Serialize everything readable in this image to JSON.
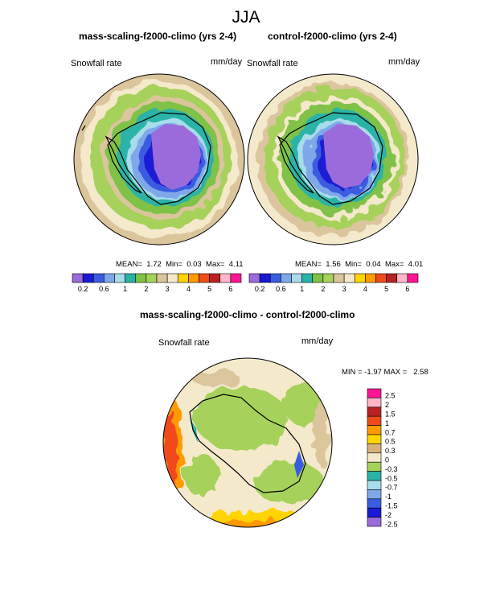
{
  "page_title": "JJA",
  "panels": [
    {
      "title": "mass-scaling-f2000-climo (yrs 2-4)",
      "variable": "Snowfall rate",
      "units": "mm/day",
      "stats": {
        "mean_label": "MEAN=",
        "mean": "1.72",
        "min_label": "Min=",
        "min": "0.03",
        "max_label": "Max=",
        "max": "4.11"
      }
    },
    {
      "title": "control-f2000-climo (yrs 2-4)",
      "variable": "Snowfall rate",
      "units": "mm/day",
      "stats": {
        "mean_label": "MEAN=",
        "mean": "1.56",
        "min_label": "Min=",
        "min": "0.04",
        "max_label": "Max=",
        "max": "4.01"
      }
    }
  ],
  "diff_panel": {
    "title": "mass-scaling-f2000-climo - control-f2000-climo",
    "variable": "Snowfall rate",
    "units": "mm/day",
    "stats": {
      "min_label": "MIN =",
      "min": "-1.97",
      "max_label": "MAX =",
      "max": "2.58"
    }
  },
  "colorbar_abs": {
    "colors": [
      "#9b6bdb",
      "#1a1ad4",
      "#3a5ce0",
      "#7ea8ea",
      "#a8dcea",
      "#29b3a6",
      "#7fc246",
      "#a6d15a",
      "#dbc59d",
      "#f5e9cc",
      "#ffd400",
      "#ff9a00",
      "#f04a1a",
      "#b82222",
      "#ffb6c8",
      "#ff1493"
    ],
    "tick_labels": [
      "0.2",
      "0.6",
      "1",
      "2",
      "3",
      "4",
      "5",
      "6"
    ]
  },
  "colorbar_diff": {
    "colors": [
      "#ff1493",
      "#ffb6c8",
      "#b82222",
      "#f04a1a",
      "#ff9a00",
      "#ffd400",
      "#d8b27a",
      "#f5e9cc",
      "#a6d15a",
      "#29b3a6",
      "#a8dcea",
      "#7ea8ea",
      "#3a5ce0",
      "#1a1ad4",
      "#9b6bdb"
    ],
    "tick_labels": [
      "2.5",
      "2",
      "1.5",
      "1",
      "0.7",
      "0.5",
      "0.3",
      "0",
      "-0.3",
      "-0.5",
      "-0.7",
      "-1",
      "-1.5",
      "-2",
      "-2.5"
    ]
  }
}
